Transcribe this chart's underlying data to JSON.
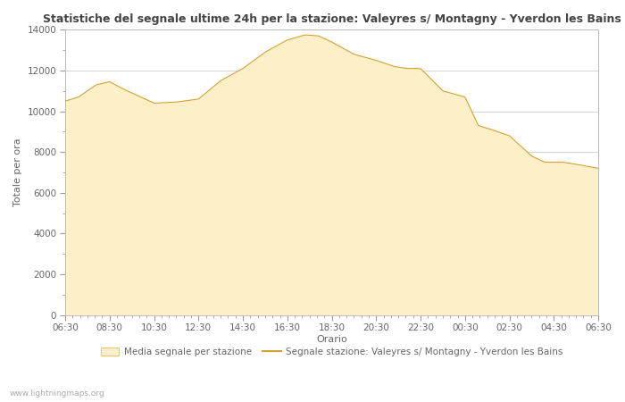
{
  "title": "Statistiche del segnale ultime 24h per la stazione: Valeyres s/ Montagny - Yverdon les Bains",
  "xlabel": "Orario",
  "ylabel": "Totale per ora",
  "x_ticks": [
    "06:30",
    "08:30",
    "10:30",
    "12:30",
    "14:30",
    "16:30",
    "18:30",
    "20:30",
    "22:30",
    "00:30",
    "02:30",
    "04:30",
    "06:30"
  ],
  "ylim": [
    0,
    14000
  ],
  "yticks": [
    0,
    2000,
    4000,
    6000,
    8000,
    10000,
    12000,
    14000
  ],
  "fill_color": "#fdf0c8",
  "fill_edge_color": "#e8c86a",
  "line_color": "#d4a030",
  "background_color": "#ffffff",
  "grid_color": "#cccccc",
  "tick_color": "#999999",
  "label_color": "#666666",
  "title_color": "#444444",
  "legend_fill_label": "Media segnale per stazione",
  "legend_line_label": "Segnale stazione: Valeyres s/ Montagny - Yverdon les Bains",
  "watermark": "www.lightningmaps.org",
  "key_x": [
    0,
    0.3,
    0.7,
    1.0,
    1.3,
    2.0,
    2.5,
    3.0,
    3.5,
    4.0,
    4.5,
    5.0,
    5.4,
    5.7,
    6.0,
    6.5,
    7.0,
    7.4,
    7.7,
    8.0,
    8.5,
    9.0,
    9.3,
    9.6,
    10.0,
    10.5,
    10.8,
    11.0,
    11.2,
    11.5,
    12.0
  ],
  "key_y": [
    10500,
    10700,
    11300,
    11450,
    11100,
    10400,
    10450,
    10600,
    11500,
    12100,
    12900,
    13500,
    13750,
    13700,
    13400,
    12800,
    12500,
    12200,
    12100,
    12100,
    11000,
    10700,
    9300,
    9100,
    8800,
    7800,
    7500,
    7500,
    7500,
    7400,
    7200
  ]
}
